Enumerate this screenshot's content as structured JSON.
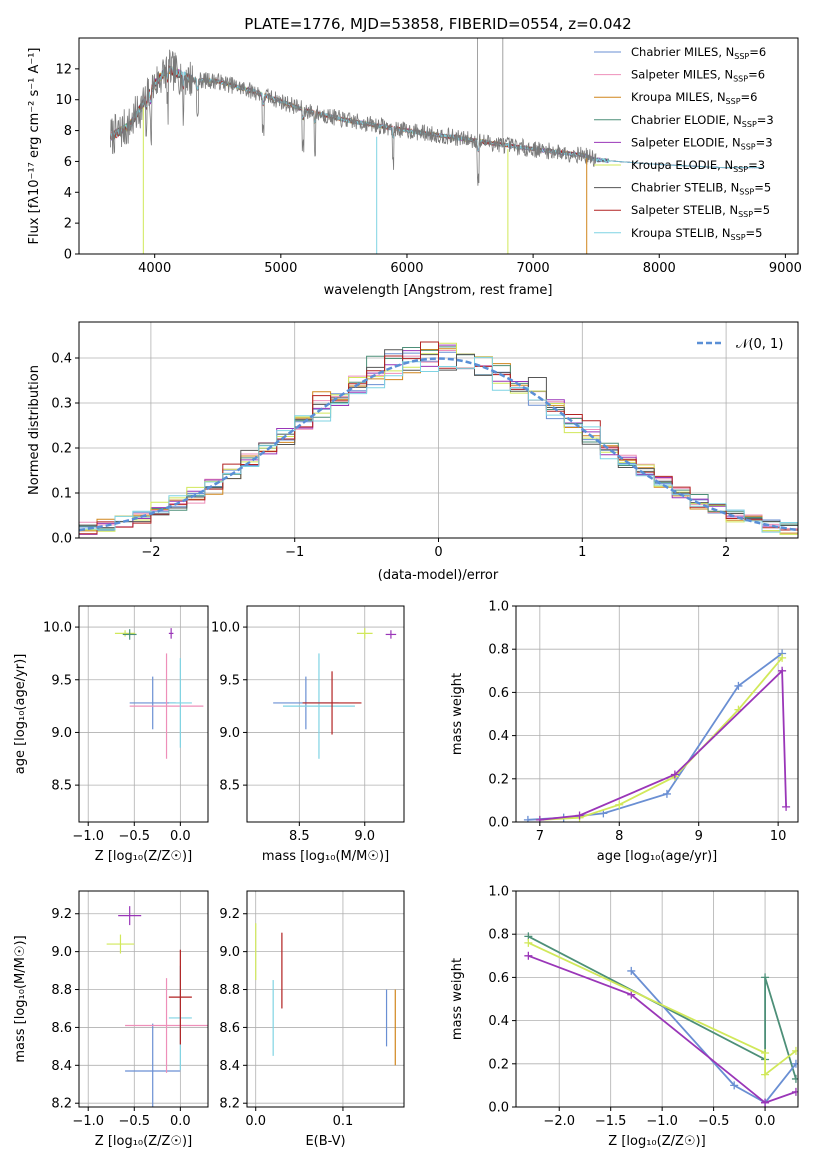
{
  "colors": [
    "#6a8fd3",
    "#ee8fb9",
    "#d0851c",
    "#4d8f78",
    "#9a36b8",
    "#d1e85a",
    "#555555",
    "#b22222",
    "#7fd3e3"
  ],
  "spectrum": {
    "title": "PLATE=1776, MJD=53858, FIBERID=0554, z=0.042",
    "xlabel": "wavelength [Angstrom, rest frame]",
    "ylabel": "Flux [fλ10⁻¹⁷ erg cm⁻² s⁻¹ A⁻¹]",
    "xticks": [
      "4000",
      "5000",
      "6000",
      "7000",
      "8000",
      "9000"
    ],
    "yticks": [
      "0",
      "2",
      "4",
      "6",
      "8",
      "10",
      "12"
    ],
    "legend": [
      "Chabrier MILES, N_SSP=6",
      "Salpeter MILES, N_SSP=6",
      "Kroupa MILES, N_SSP=6",
      "Chabrier ELODIE, N_SSP=3",
      "Salpeter ELODIE, N_SSP=3",
      "Kroupa ELODIE, N_SSP=3",
      "Chabrier STELIB, N_SSP=5",
      "Salpeter STELIB, N_SSP=5",
      "Kroupa STELIB, N_SSP=5"
    ]
  },
  "residuals": {
    "xlabel": "(data-model)/error",
    "ylabel": "Normed distribution",
    "xticks": [
      "−2",
      "−1",
      "0",
      "1",
      "2"
    ],
    "yticks": [
      "0.0",
      "0.1",
      "0.2",
      "0.3",
      "0.4"
    ],
    "legend": "𝒩(0, 1)"
  },
  "panels": {
    "z_age": {
      "xlabel": "Z [log₁₀(Z/Z☉)]",
      "ylabel": "age  [log₁₀(age/yr)]",
      "xticks": [
        "−1.0",
        "−0.5",
        "0.0"
      ],
      "yticks": [
        "8.5",
        "9.0",
        "9.5",
        "10.0"
      ]
    },
    "mass_age": {
      "xlabel": "mass [log₁₀(M/M☉)]",
      "xticks": [
        "8.5",
        "9.0"
      ],
      "yticks": [
        "8.5",
        "9.0",
        "9.5",
        "10.0"
      ]
    },
    "age_weight": {
      "xlabel": "age  [log₁₀(age/yr)]",
      "ylabel": "mass weight",
      "xticks": [
        "7",
        "8",
        "9",
        "10"
      ],
      "yticks": [
        "0.0",
        "0.2",
        "0.4",
        "0.6",
        "0.8",
        "1.0"
      ]
    },
    "z_mass": {
      "xlabel": "Z [log₁₀(Z/Z☉)]",
      "ylabel": "mass [log₁₀(M/M☉)]",
      "xticks": [
        "−1.0",
        "−0.5",
        "0.0"
      ],
      "yticks": [
        "8.2",
        "8.4",
        "8.6",
        "8.8",
        "9.0",
        "9.2"
      ]
    },
    "ebv_mass": {
      "xlabel": "E(B-V)",
      "xticks": [
        "0.0",
        "0.1"
      ],
      "yticks": [
        "8.2",
        "8.4",
        "8.6",
        "8.8",
        "9.0",
        "9.2"
      ]
    },
    "z_weight": {
      "xlabel": "Z [log₁₀(Z/Z☉)]",
      "ylabel": "mass weight",
      "xticks": [
        "−2.0",
        "−1.5",
        "−1.0",
        "−0.5",
        "0.0"
      ],
      "yticks": [
        "0.0",
        "0.2",
        "0.4",
        "0.6",
        "0.8",
        "1.0"
      ]
    }
  },
  "chart_data": [
    {
      "type": "line",
      "title": "PLATE=1776, MJD=53858, FIBERID=0554, z=0.042",
      "xlabel": "wavelength [Angstrom, rest frame]",
      "ylabel": "Flux [fλ10⁻¹⁷ erg cm⁻² s⁻¹ A⁻¹]",
      "xlim": [
        3400,
        9100
      ],
      "ylim": [
        0,
        14
      ],
      "data_anchors": {
        "wavelength": [
          3650,
          3800,
          4000,
          4100,
          4300,
          4500,
          4800,
          5000,
          5200,
          5500,
          6000,
          6500,
          7000,
          7400,
          7500,
          8000,
          8500,
          8800
        ],
        "flux": [
          7.6,
          8.3,
          11.0,
          12.0,
          11.3,
          11.2,
          10.5,
          9.9,
          9.3,
          8.7,
          8.0,
          7.4,
          6.8,
          6.4,
          6.1,
          5.8,
          5.6,
          5.6
        ]
      },
      "legend": [
        "Chabrier MILES, N_SSP=6",
        "Salpeter MILES, N_SSP=6",
        "Kroupa MILES, N_SSP=6",
        "Chabrier ELODIE, N_SSP=3",
        "Salpeter ELODIE, N_SSP=3",
        "Kroupa ELODIE, N_SSP=3",
        "Chabrier STELIB, N_SSP=5",
        "Salpeter STELIB, N_SSP=5",
        "Kroupa STELIB, N_SSP=5"
      ]
    },
    {
      "type": "line",
      "xlabel": "(data-model)/error",
      "ylabel": "Normed distribution",
      "xlim": [
        -2.5,
        2.5
      ],
      "ylim": [
        0,
        0.48
      ],
      "bin_width": 0.125,
      "reference_curve": "𝒩(0, 1)"
    },
    {
      "type": "scatter",
      "xlabel": "Z [log₁₀(Z/Z☉)]",
      "ylabel": "age  [log₁₀(age/yr)]",
      "xlim": [
        -1.1,
        0.3
      ],
      "ylim": [
        8.15,
        10.2
      ],
      "errorbars": [
        {
          "x": -0.6,
          "y": 9.94,
          "xerr": 0.22,
          "yerr": 0.06
        },
        {
          "x": -0.55,
          "y": 9.93,
          "xerr": 0.15,
          "yerr": 0.1
        },
        {
          "x": -0.3,
          "y": 9.28,
          "xerr": 0.5,
          "yerr": 0.5
        },
        {
          "x": -0.15,
          "y": 9.25,
          "xerr": 0.8,
          "yerr": 1.0
        },
        {
          "x": 0.0,
          "y": 9.28,
          "xerr": 0.25,
          "yerr": 0.85
        },
        {
          "x": -0.1,
          "y": 9.94,
          "xerr": 0.05,
          "yerr": 0.1
        }
      ]
    },
    {
      "type": "scatter",
      "xlabel": "mass [log₁₀(M/M☉)]",
      "xlim": [
        8.1,
        9.3
      ],
      "ylim": [
        8.15,
        10.2
      ],
      "errorbars": [
        {
          "x": 8.55,
          "y": 9.28,
          "xerr": 0.5,
          "yerr": 0.5
        },
        {
          "x": 8.65,
          "y": 9.25,
          "xerr": 0.55,
          "yerr": 1.0
        },
        {
          "x": 8.75,
          "y": 9.28,
          "xerr": 0.45,
          "yerr": 0.6
        },
        {
          "x": 9.0,
          "y": 9.94,
          "xerr": 0.12,
          "yerr": 0.1
        },
        {
          "x": 9.2,
          "y": 9.93,
          "xerr": 0.08,
          "yerr": 0.08
        }
      ]
    },
    {
      "type": "line",
      "xlabel": "age  [log₁₀(age/yr)]",
      "ylabel": "mass weight",
      "xlim": [
        6.7,
        10.25
      ],
      "ylim": [
        0,
        1
      ],
      "series_points": [
        {
          "x": [
            6.85,
            7.3,
            7.8,
            8.6,
            9.5,
            10.05
          ],
          "y": [
            0.01,
            0.02,
            0.04,
            0.13,
            0.63,
            0.78
          ]
        },
        {
          "x": [
            7.0,
            7.5,
            8.0,
            8.7,
            9.5,
            10.05
          ],
          "y": [
            0.01,
            0.02,
            0.08,
            0.21,
            0.52,
            0.76
          ]
        },
        {
          "x": [
            7.0,
            7.5,
            8.7,
            10.05,
            10.1
          ],
          "y": [
            0.01,
            0.03,
            0.22,
            0.7,
            0.07
          ]
        }
      ]
    },
    {
      "type": "scatter",
      "xlabel": "Z [log₁₀(Z/Z☉)]",
      "ylabel": "mass [log₁₀(M/M☉)]",
      "xlim": [
        -1.1,
        0.3
      ],
      "ylim": [
        8.18,
        9.32
      ],
      "errorbars": [
        {
          "x": -0.65,
          "y": 9.04,
          "xerr": 0.3,
          "yerr": 0.1
        },
        {
          "x": -0.55,
          "y": 9.19,
          "xerr": 0.25,
          "yerr": 0.1
        },
        {
          "x": -0.3,
          "y": 8.37,
          "xerr": 0.6,
          "yerr": 0.5
        },
        {
          "x": -0.15,
          "y": 8.61,
          "xerr": 0.9,
          "yerr": 0.5
        },
        {
          "x": 0.0,
          "y": 8.65,
          "xerr": 0.25,
          "yerr": 0.55
        },
        {
          "x": 0.0,
          "y": 8.76,
          "xerr": 0.25,
          "yerr": 0.5
        }
      ]
    },
    {
      "type": "scatter",
      "xlabel": "E(B-V)",
      "xlim": [
        -0.01,
        0.17
      ],
      "ylim": [
        8.18,
        9.32
      ],
      "errorbars": [
        {
          "x": 0.0,
          "y": 9.0,
          "yerr": 0.3
        },
        {
          "x": 0.02,
          "y": 8.65,
          "yerr": 0.4
        },
        {
          "x": 0.03,
          "y": 8.9,
          "yerr": 0.4
        },
        {
          "x": 0.15,
          "y": 8.65,
          "yerr": 0.3
        },
        {
          "x": 0.16,
          "y": 8.6,
          "yerr": 0.4
        }
      ]
    },
    {
      "type": "line",
      "xlabel": "Z [log₁₀(Z/Z☉)]",
      "ylabel": "mass weight",
      "xlim": [
        -2.42,
        0.32
      ],
      "ylim": [
        0,
        1
      ],
      "series_points": [
        {
          "x": [
            -2.3,
            0.0,
            0.0,
            0.3
          ],
          "y": [
            0.79,
            0.22,
            0.6,
            0.13
          ]
        },
        {
          "x": [
            -1.3,
            -0.3,
            0.0,
            0.3
          ],
          "y": [
            0.63,
            0.1,
            0.02,
            0.2
          ]
        },
        {
          "x": [
            -2.3,
            -1.3,
            0.0,
            0.3
          ],
          "y": [
            0.7,
            0.52,
            0.02,
            0.07
          ]
        },
        {
          "x": [
            -2.3,
            0.0,
            0.0,
            0.3
          ],
          "y": [
            0.76,
            0.25,
            0.15,
            0.26
          ]
        }
      ]
    }
  ]
}
